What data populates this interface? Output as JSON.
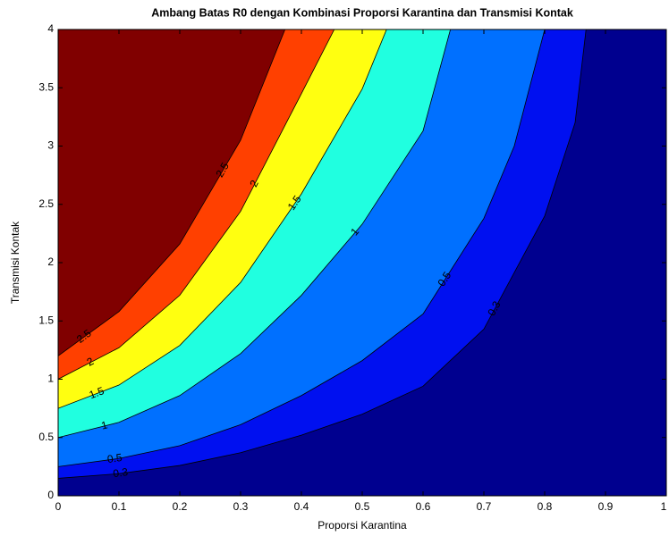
{
  "chart_data": {
    "type": "contourf",
    "title": "Ambang Batas R0 dengan Kombinasi Proporsi Karantina dan Transmisi Kontak",
    "x_label": "Proporsi Karantina",
    "y_label": "Transmisi Kontak",
    "xlim": [
      0,
      1
    ],
    "ylim": [
      0,
      4
    ],
    "xticks": [
      0,
      0.1,
      0.2,
      0.3,
      0.4,
      0.5,
      0.6,
      0.7,
      0.8,
      0.9,
      1
    ],
    "yticks": [
      0,
      0.5,
      1,
      1.5,
      2,
      2.5,
      3,
      3.5,
      4
    ],
    "colors": [
      "#00008f",
      "#0010f0",
      "#0070ff",
      "#20ffe0",
      "#ffff10",
      "#ff4000",
      "#800000"
    ],
    "contours": [
      {
        "level": 0.3,
        "x": [
          0,
          0.1,
          0.2,
          0.3,
          0.4,
          0.5,
          0.6,
          0.7,
          0.8,
          0.85,
          0.868
        ],
        "y": [
          0.15,
          0.19,
          0.26,
          0.37,
          0.52,
          0.7,
          0.94,
          1.43,
          2.4,
          3.2,
          4
        ]
      },
      {
        "level": 0.5,
        "x": [
          0,
          0.1,
          0.2,
          0.3,
          0.4,
          0.5,
          0.6,
          0.7,
          0.75,
          0.8
        ],
        "y": [
          0.25,
          0.32,
          0.43,
          0.61,
          0.86,
          1.16,
          1.56,
          2.38,
          3.0,
          4
        ]
      },
      {
        "level": 1,
        "x": [
          0,
          0.1,
          0.2,
          0.3,
          0.4,
          0.5,
          0.6,
          0.645
        ],
        "y": [
          0.5,
          0.63,
          0.86,
          1.22,
          1.72,
          2.33,
          3.13,
          4
        ]
      },
      {
        "level": 1.5,
        "x": [
          0,
          0.1,
          0.2,
          0.3,
          0.4,
          0.5,
          0.54
        ],
        "y": [
          0.75,
          0.95,
          1.29,
          1.83,
          2.59,
          3.49,
          4
        ]
      },
      {
        "level": 2,
        "x": [
          0,
          0.1,
          0.2,
          0.3,
          0.4,
          0.454
        ],
        "y": [
          1,
          1.27,
          1.72,
          2.44,
          3.45,
          4
        ]
      },
      {
        "level": 2.5,
        "x": [
          0,
          0.1,
          0.2,
          0.3,
          0.373
        ],
        "y": [
          1.2,
          1.58,
          2.16,
          3.05,
          4
        ]
      }
    ]
  }
}
